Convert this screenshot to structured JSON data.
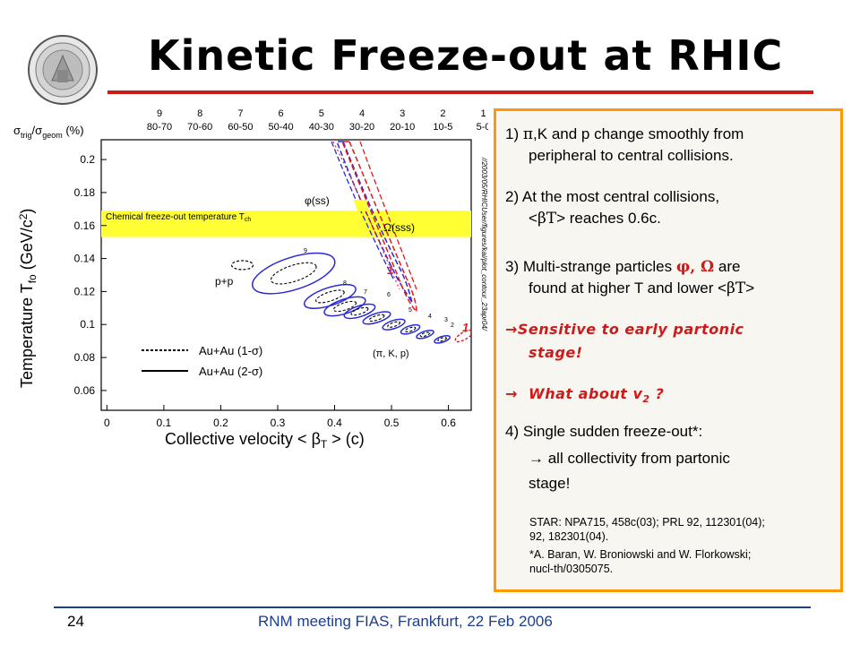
{
  "slide": {
    "title": "Kinetic Freeze-out at RHIC",
    "page_number": "24",
    "footer": "RNM meeting FIAS, Frankfurt, 22 Feb 2006",
    "colors": {
      "title_rule": "#cc1b1b",
      "footer_rule": "#1c3e8f",
      "box_border": "#ff9900",
      "highlight": "#cc1b1b"
    },
    "logo": "university-seal"
  },
  "figure": {
    "top_axis_label": "σtrig/σgeom (%)",
    "top_centrality": [
      {
        "bin": "9",
        "range": "80-70"
      },
      {
        "bin": "8",
        "range": "70-60"
      },
      {
        "bin": "7",
        "range": "60-50"
      },
      {
        "bin": "6",
        "range": "50-40"
      },
      {
        "bin": "5",
        "range": "40-30"
      },
      {
        "bin": "4",
        "range": "30-20"
      },
      {
        "bin": "3",
        "range": "20-10"
      },
      {
        "bin": "2",
        "range": "10-5"
      },
      {
        "bin": "1",
        "range": "5-0"
      }
    ],
    "y_axis_label": "Temperature Tfo (GeV/c²)",
    "x_axis_label": "Collective velocity < βT > (c)",
    "band_label": "Chemical freeze-out temperature Tch",
    "label_phi": "φ(ss)",
    "label_omega": "Ω(sss)",
    "label_pp": "p+p",
    "label_particles": "(π, K, p)",
    "legend_1sigma": "Au+Au (1-σ)",
    "legend_2sigma": "Au+Au (2-σ)",
    "label_one": "1",
    "label_nine": "9",
    "small_labels": [
      "8",
      "7",
      "6",
      "5",
      "4",
      "3",
      "2"
    ],
    "side_path": "//2003/05/RHICUser/figures/kai/plot_contour_23apr04/"
  },
  "chart_data": {
    "type": "scatter",
    "xlabel": "Collective velocity < βT > (c)",
    "ylabel": "Temperature Tfo (GeV/c²)",
    "xlim": [
      -0.01,
      0.64
    ],
    "ylim": [
      0.048,
      0.212
    ],
    "x_ticks": [
      "0",
      "0.1",
      "0.2",
      "0.3",
      "0.4",
      "0.5",
      "0.6"
    ],
    "y_ticks": [
      "0.06",
      "0.08",
      "0.1",
      "0.12",
      "0.14",
      "0.16",
      "0.18",
      "0.2"
    ],
    "chemical_freezeout_band": [
      0.153,
      0.169
    ],
    "au_au_pi_k_p": [
      {
        "bin": "9",
        "beta": 0.328,
        "T": 0.131
      },
      {
        "bin": "8",
        "beta": 0.392,
        "T": 0.117
      },
      {
        "bin": "7",
        "beta": 0.418,
        "T": 0.111
      },
      {
        "bin": "6",
        "beta": 0.444,
        "T": 0.108
      },
      {
        "bin": "5",
        "beta": 0.474,
        "T": 0.104
      },
      {
        "bin": "4",
        "beta": 0.504,
        "T": 0.1
      },
      {
        "bin": "3",
        "beta": 0.533,
        "T": 0.097
      },
      {
        "bin": "2",
        "beta": 0.559,
        "T": 0.094
      },
      {
        "bin": "1",
        "beta": 0.589,
        "T": 0.091
      }
    ],
    "pp": {
      "beta": 0.238,
      "T": 0.136
    },
    "multi_strange_phi_omega": {
      "beta": 0.44,
      "T": 0.148
    },
    "contour_styles": [
      "Au+Au (1-σ)",
      "Au+Au (2-σ)"
    ],
    "colors": {
      "pi_k_p": "#2a2ad9",
      "phi": "#2a2ad9",
      "omega": "#e01a1a",
      "band": "#ffff33"
    }
  },
  "points": {
    "p1_a": "1)  ",
    "p1_sym": "π",
    "p1_b": ",K and p change smoothly from",
    "p1_c": "peripheral to central collisions.",
    "p2_a": "2)  At the most central collisions,",
    "p2_b1": "<",
    "p2_sym": "βT",
    "p2_b2": "> reaches 0.6c.",
    "p3_a1": "3)  Multi-strange particles ",
    "p3_sym": "φ, Ω",
    "p3_a2": " are",
    "p3_b1": "found at higher T and lower ",
    "p3_b2": "<",
    "p3_bsym": "βT",
    "p3_b3": ">",
    "arrow": "→",
    "sens_a": "Sensitive to early partonic",
    "sens_b": "stage!",
    "what_a": "What about v",
    "what_sub": "2",
    "what_b": " ?",
    "p4_a": "4) Single sudden freeze-out*:",
    "p4_b": " all collectivity from partonic",
    "p4_c": "stage!",
    "ref_1": "STAR: NPA715, 458c(03);  PRL 92, 112301(04);",
    "ref_2": "92, 182301(04).",
    "ref_3": "*A. Baran, W. Broniowski and W. Florkowski;",
    "ref_4": "nucl-th/0305075."
  }
}
